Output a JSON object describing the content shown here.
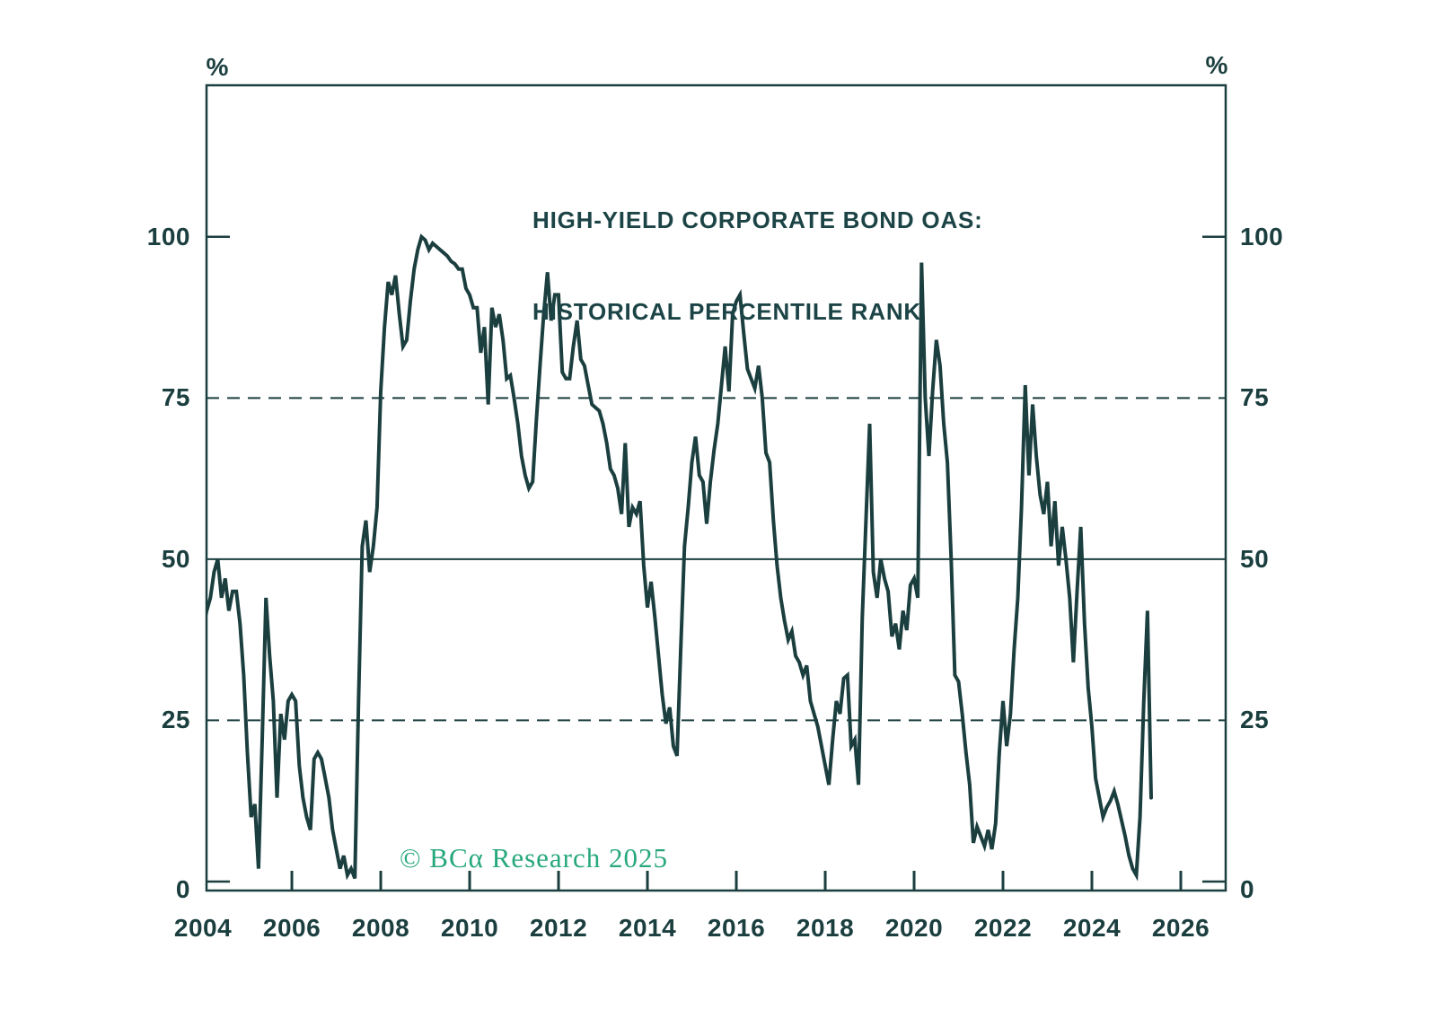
{
  "title": {
    "line1": "HIGH-YIELD CORPORATE BOND OAS:",
    "line2": "HISTORICAL PERCENTILE RANK"
  },
  "watermark": {
    "text": "© BCα Research 2025"
  },
  "axis_unit": {
    "left": "%",
    "right": "%"
  },
  "colors": {
    "ink": "#1b3e3f",
    "line": "#1b3e3f",
    "watermark_green": "#27a87d",
    "background": "#ffffff"
  },
  "chart_data": {
    "type": "line",
    "title": "HIGH-YIELD CORPORATE BOND OAS: HISTORICAL PERCENTILE RANK",
    "ylabel": "%",
    "xlabel": "",
    "legend": "none",
    "grid": {
      "solid_y": [
        50
      ],
      "dashed_y": [
        25,
        75
      ]
    },
    "frequency": "monthly",
    "start": "2004-01",
    "end": "2025-05",
    "y_axis": {
      "ticks": [
        0,
        25,
        50,
        75,
        100
      ],
      "range_edges": [
        -1.4,
        123.5
      ],
      "edge_tick_values": [
        0,
        100
      ]
    },
    "x_axis": {
      "tick_years": [
        2004,
        2006,
        2008,
        2010,
        2012,
        2014,
        2016,
        2018,
        2020,
        2022,
        2024,
        2026
      ],
      "range_edges": [
        2004.08,
        2027.01
      ]
    },
    "values": [
      39,
      42,
      44,
      48,
      50,
      44,
      47,
      42,
      45,
      45,
      40,
      32,
      20,
      10,
      12,
      2,
      22,
      44,
      35,
      28,
      13,
      26,
      22,
      28,
      29,
      28,
      18,
      13,
      10,
      8,
      19,
      20,
      19,
      16,
      13,
      8,
      5,
      2,
      4,
      1,
      2,
      0.5,
      28,
      52,
      56,
      48,
      52,
      58,
      76,
      86,
      93,
      91,
      94,
      88,
      83,
      84,
      90,
      95,
      98,
      100,
      99.5,
      98,
      99,
      98.5,
      98,
      97.5,
      97,
      96.2,
      95.8,
      95,
      95,
      92,
      91,
      89,
      89,
      82,
      86,
      74,
      89,
      86,
      88,
      84,
      78,
      78.5,
      75,
      71,
      66,
      63,
      61,
      62,
      71.5,
      80,
      88,
      94.5,
      87,
      91,
      91,
      79,
      78,
      78,
      83,
      87,
      81,
      80,
      77,
      74,
      73.5,
      73,
      71,
      68,
      64,
      63,
      61,
      57,
      68,
      55,
      58,
      57,
      59,
      49,
      42.5,
      46.5,
      41,
      35,
      29,
      24.5,
      27,
      21,
      19.5,
      36,
      52,
      58,
      65,
      69,
      63,
      62,
      55.5,
      62,
      67,
      71,
      77,
      83,
      76,
      88,
      90,
      91,
      85,
      79.5,
      78,
      76.5,
      80,
      75,
      66.5,
      65,
      56,
      49,
      44,
      40.5,
      37.5,
      38.8,
      35,
      34,
      32,
      33.5,
      28,
      26,
      24,
      21,
      18,
      15,
      22,
      28,
      26,
      31.5,
      32,
      21,
      22,
      15,
      41,
      56,
      71,
      48,
      44,
      50,
      47,
      45,
      38,
      40,
      36,
      42,
      39,
      46,
      47,
      44,
      96,
      75,
      66,
      76,
      84,
      80,
      71,
      65,
      50,
      32,
      31,
      26,
      20,
      15,
      6,
      8.5,
      7,
      5.5,
      8,
      5,
      9,
      20,
      28,
      21,
      26,
      36,
      44,
      58,
      77,
      63,
      74,
      66,
      60,
      57,
      62,
      52,
      59,
      49,
      55,
      50,
      44,
      34,
      45,
      55,
      40,
      30,
      24,
      16,
      13,
      10,
      11.5,
      12.5,
      14,
      12,
      9.5,
      7,
      4,
      2,
      1,
      10,
      28,
      42,
      13
    ]
  }
}
